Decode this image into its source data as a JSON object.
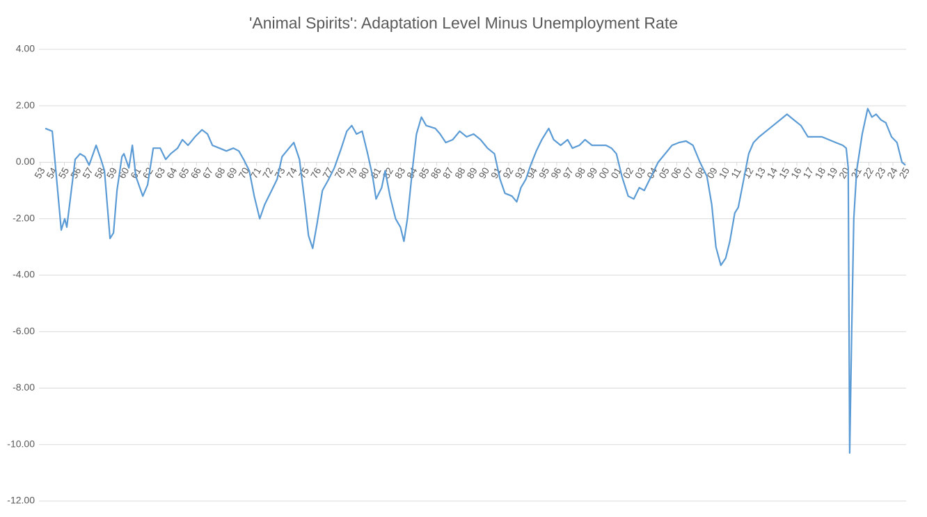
{
  "chart_data": {
    "type": "line",
    "title": "'Animal Spirits': Adaptation Level Minus Unemployment Rate",
    "series": [
      {
        "name": "Animal Spirits",
        "color": "#5b9bd5",
        "x": [
          1953.41,
          1953.99,
          1954.74,
          1955.03,
          1955.2,
          1955.9,
          1956.31,
          1956.71,
          1957.06,
          1957.64,
          1958.05,
          1958.34,
          1958.8,
          1959.09,
          1959.38,
          1959.79,
          1959.96,
          1960.37,
          1960.66,
          1960.95,
          1961.53,
          1961.93,
          1962.4,
          1962.98,
          1963.44,
          1963.85,
          1964.43,
          1964.83,
          1965.3,
          1965.88,
          1966.46,
          1966.92,
          1967.33,
          1967.91,
          1968.49,
          1969.07,
          1969.53,
          1969.93,
          1970.4,
          1970.81,
          1971.27,
          1971.68,
          1972.26,
          1972.72,
          1973.13,
          1973.71,
          1974.11,
          1974.58,
          1975.04,
          1975.33,
          1975.68,
          1976.03,
          1976.49,
          1977.01,
          1977.48,
          1978.06,
          1978.52,
          1978.93,
          1979.33,
          1979.8,
          1980.26,
          1980.67,
          1980.96,
          1981.42,
          1981.71,
          1982.12,
          1982.58,
          1982.99,
          1983.28,
          1983.57,
          1983.97,
          1984.32,
          1984.73,
          1985.13,
          1985.89,
          1986.29,
          1986.76,
          1987.34,
          1987.92,
          1988.5,
          1989.08,
          1989.66,
          1990.24,
          1990.82,
          1991.28,
          1991.69,
          1992.27,
          1992.67,
          1993.02,
          1993.43,
          1993.83,
          1994.3,
          1994.76,
          1995.34,
          1995.75,
          1996.33,
          1996.91,
          1997.31,
          1997.89,
          1998.36,
          1998.94,
          1999.52,
          2000.1,
          2000.56,
          2000.97,
          2001.43,
          2001.95,
          2002.42,
          2002.88,
          2003.29,
          2003.87,
          2004.45,
          2005.03,
          2005.61,
          2006.19,
          2006.77,
          2007.35,
          2007.93,
          2008.51,
          2008.91,
          2009.26,
          2009.67,
          2010.07,
          2010.42,
          2010.83,
          2011.12,
          2011.58,
          2011.99,
          2012.39,
          2012.86,
          2013.44,
          2014.02,
          2014.6,
          2015.18,
          2015.76,
          2016.34,
          2016.92,
          2017.5,
          2018.08,
          2018.66,
          2019.24,
          2019.82,
          2020.11,
          2020.28,
          2020.4,
          2020.57,
          2020.74,
          2020.98,
          2021.44,
          2021.9,
          2022.25,
          2022.6,
          2023.01,
          2023.41,
          2023.88,
          2024.34,
          2024.75,
          2025.04
        ],
        "values": [
          1.2,
          1.1,
          -2.4,
          -2.0,
          -2.3,
          0.1,
          0.3,
          0.2,
          -0.1,
          0.6,
          0.1,
          -0.3,
          -2.7,
          -2.5,
          -1.0,
          0.2,
          0.3,
          -0.2,
          0.6,
          -0.5,
          -1.2,
          -0.8,
          0.5,
          0.5,
          0.1,
          0.3,
          0.5,
          0.8,
          0.6,
          0.9,
          1.15,
          1.0,
          0.6,
          0.5,
          0.4,
          0.5,
          0.4,
          0.1,
          -0.3,
          -1.2,
          -2.0,
          -1.5,
          -1.0,
          -0.6,
          0.2,
          0.5,
          0.7,
          0.1,
          -1.5,
          -2.6,
          -3.05,
          -2.2,
          -1.0,
          -0.6,
          -0.2,
          0.5,
          1.1,
          1.3,
          1.0,
          1.1,
          0.3,
          -0.5,
          -1.3,
          -0.9,
          -0.3,
          -1.2,
          -2.0,
          -2.3,
          -2.8,
          -2.0,
          -0.3,
          1.0,
          1.6,
          1.3,
          1.2,
          1.0,
          0.7,
          0.8,
          1.1,
          0.9,
          1.0,
          0.8,
          0.5,
          0.3,
          -0.6,
          -1.1,
          -1.2,
          -1.4,
          -0.9,
          -0.6,
          -0.1,
          0.4,
          0.8,
          1.2,
          0.8,
          0.6,
          0.8,
          0.5,
          0.6,
          0.8,
          0.6,
          0.6,
          0.6,
          0.5,
          0.3,
          -0.5,
          -1.2,
          -1.3,
          -0.9,
          -1.0,
          -0.5,
          0.0,
          0.3,
          0.6,
          0.7,
          0.75,
          0.6,
          0.0,
          -0.5,
          -1.5,
          -3.0,
          -3.65,
          -3.4,
          -2.8,
          -1.8,
          -1.6,
          -0.6,
          0.3,
          0.7,
          0.9,
          1.1,
          1.3,
          1.5,
          1.7,
          1.5,
          1.3,
          0.9,
          0.9,
          0.9,
          0.8,
          0.7,
          0.6,
          0.5,
          -0.2,
          -10.3,
          -6.0,
          -2.0,
          -0.3,
          1.0,
          1.9,
          1.6,
          1.7,
          1.5,
          1.4,
          0.9,
          0.7,
          0.0,
          -0.1
        ]
      }
    ],
    "xlim": [
      1953,
      2025.1
    ],
    "xticks": [
      {
        "value": 1953,
        "label": "53"
      },
      {
        "value": 1954,
        "label": "54"
      },
      {
        "value": 1955,
        "label": "55"
      },
      {
        "value": 1956,
        "label": "56"
      },
      {
        "value": 1957,
        "label": "57"
      },
      {
        "value": 1958,
        "label": "58"
      },
      {
        "value": 1959,
        "label": "59"
      },
      {
        "value": 1960,
        "label": "60"
      },
      {
        "value": 1961,
        "label": "61"
      },
      {
        "value": 1962,
        "label": "62"
      },
      {
        "value": 1963,
        "label": "63"
      },
      {
        "value": 1964,
        "label": "64"
      },
      {
        "value": 1965,
        "label": "65"
      },
      {
        "value": 1966,
        "label": "66"
      },
      {
        "value": 1967,
        "label": "67"
      },
      {
        "value": 1968,
        "label": "68"
      },
      {
        "value": 1969,
        "label": "69"
      },
      {
        "value": 1970,
        "label": "70"
      },
      {
        "value": 1971,
        "label": "71"
      },
      {
        "value": 1972,
        "label": "72"
      },
      {
        "value": 1973,
        "label": "73"
      },
      {
        "value": 1974,
        "label": "74"
      },
      {
        "value": 1975,
        "label": "75"
      },
      {
        "value": 1976,
        "label": "76"
      },
      {
        "value": 1977,
        "label": "77"
      },
      {
        "value": 1978,
        "label": "78"
      },
      {
        "value": 1979,
        "label": "79"
      },
      {
        "value": 1980,
        "label": "80"
      },
      {
        "value": 1981,
        "label": "81"
      },
      {
        "value": 1982,
        "label": "82"
      },
      {
        "value": 1983,
        "label": "83"
      },
      {
        "value": 1984,
        "label": "84"
      },
      {
        "value": 1985,
        "label": "85"
      },
      {
        "value": 1986,
        "label": "86"
      },
      {
        "value": 1987,
        "label": "87"
      },
      {
        "value": 1988,
        "label": "88"
      },
      {
        "value": 1989,
        "label": "89"
      },
      {
        "value": 1990,
        "label": "90"
      },
      {
        "value": 1991,
        "label": "91"
      },
      {
        "value": 1992,
        "label": "92"
      },
      {
        "value": 1993,
        "label": "93"
      },
      {
        "value": 1994,
        "label": "94"
      },
      {
        "value": 1995,
        "label": "95"
      },
      {
        "value": 1996,
        "label": "96"
      },
      {
        "value": 1997,
        "label": "97"
      },
      {
        "value": 1998,
        "label": "98"
      },
      {
        "value": 1999,
        "label": "99"
      },
      {
        "value": 2000,
        "label": "00"
      },
      {
        "value": 2001,
        "label": "01"
      },
      {
        "value": 2002,
        "label": "02"
      },
      {
        "value": 2003,
        "label": "03"
      },
      {
        "value": 2004,
        "label": "04"
      },
      {
        "value": 2005,
        "label": "05"
      },
      {
        "value": 2006,
        "label": "06"
      },
      {
        "value": 2007,
        "label": "07"
      },
      {
        "value": 2008,
        "label": "08"
      },
      {
        "value": 2009,
        "label": "09"
      },
      {
        "value": 2010,
        "label": "10"
      },
      {
        "value": 2011,
        "label": "11"
      },
      {
        "value": 2012,
        "label": "12"
      },
      {
        "value": 2013,
        "label": "13"
      },
      {
        "value": 2014,
        "label": "14"
      },
      {
        "value": 2015,
        "label": "15"
      },
      {
        "value": 2016,
        "label": "16"
      },
      {
        "value": 2017,
        "label": "17"
      },
      {
        "value": 2018,
        "label": "18"
      },
      {
        "value": 2019,
        "label": "19"
      },
      {
        "value": 2020,
        "label": "20"
      },
      {
        "value": 2021,
        "label": "21"
      },
      {
        "value": 2022,
        "label": "22"
      },
      {
        "value": 2023,
        "label": "23"
      },
      {
        "value": 2024,
        "label": "24"
      },
      {
        "value": 2025,
        "label": "25"
      }
    ],
    "ylim": [
      -12,
      4
    ],
    "yticks": [
      {
        "value": -12,
        "label": "-12.00"
      },
      {
        "value": -10,
        "label": "-10.00"
      },
      {
        "value": -8,
        "label": "-8.00"
      },
      {
        "value": -6,
        "label": "-6.00"
      },
      {
        "value": -4,
        "label": "-4.00"
      },
      {
        "value": -2,
        "label": "-2.00"
      },
      {
        "value": 0,
        "label": "0.00"
      },
      {
        "value": 2,
        "label": "2.00"
      },
      {
        "value": 4,
        "label": "4.00"
      }
    ],
    "grid": true
  }
}
